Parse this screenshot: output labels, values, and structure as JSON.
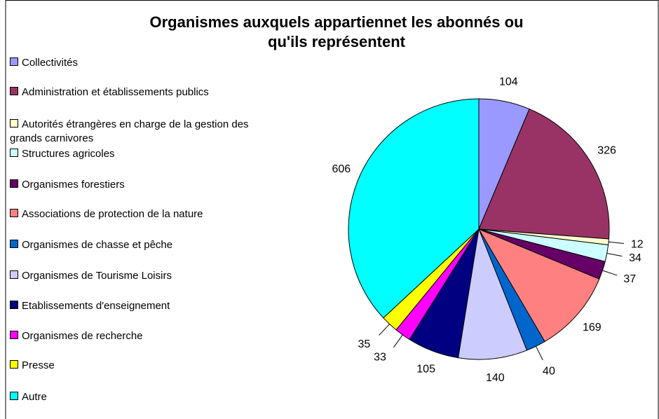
{
  "chart_data": {
    "type": "pie",
    "title": "Organismes auxquels appartiennet les abonnés ou qu'ils représentent",
    "categories": [
      "Collectivités",
      "Administration et établissements publics",
      "Autorités étrangères en charge de la gestion des grands carnivores",
      "Structures agricoles",
      "Organismes forestiers",
      "Associations de protection de la nature",
      "Organismes de chasse et pêche",
      "Organismes de Tourisme Loisirs",
      "Etablissements d'enseignement",
      "Organismes de recherche",
      "Presse",
      "Autre"
    ],
    "values": [
      104,
      326,
      12,
      34,
      37,
      169,
      40,
      140,
      105,
      33,
      35,
      606
    ],
    "colors": [
      "#9999ff",
      "#993366",
      "#ffffcc",
      "#ccffff",
      "#660066",
      "#ff8080",
      "#0066cc",
      "#ccccff",
      "#000080",
      "#ff00ff",
      "#ffff00",
      "#00ffff"
    ],
    "legend": "left"
  }
}
